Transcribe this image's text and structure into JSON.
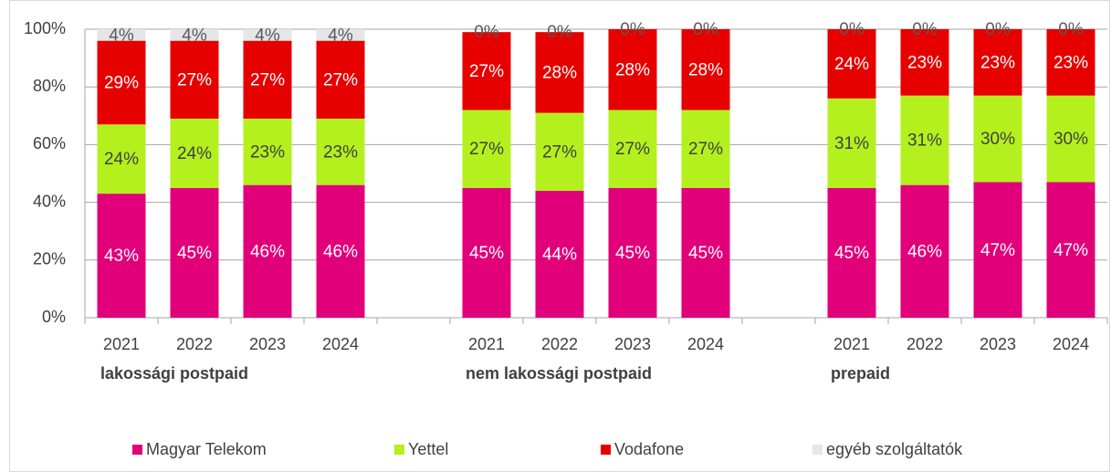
{
  "chart_data": {
    "type": "stacked_bar",
    "categories": [
      "2021",
      "2022",
      "2023",
      "2024",
      null,
      "2021",
      "2022",
      "2023",
      "2024",
      null,
      "2021",
      "2022",
      "2023",
      "2024"
    ],
    "groups": [
      "lakossági postpaid",
      null,
      null,
      null,
      null,
      "nem lakossági postpaid",
      null,
      null,
      null,
      null,
      "prepaid",
      null,
      null,
      null
    ],
    "series": [
      {
        "name": "Magyar Telekom",
        "color": "#e2007a",
        "label_color": "#ffffff",
        "values": [
          43,
          45,
          46,
          46,
          null,
          45,
          44,
          45,
          45,
          null,
          45,
          46,
          47,
          47
        ],
        "value_labels": [
          "43%",
          "45%",
          "46%",
          "46%",
          null,
          "45%",
          "44%",
          "45%",
          "45%",
          null,
          "45%",
          "46%",
          "47%",
          "47%"
        ]
      },
      {
        "name": "Yettel",
        "color": "#b4f01e",
        "label_color": "#404040",
        "values": [
          24,
          24,
          23,
          23,
          null,
          27,
          27,
          27,
          27,
          null,
          31,
          31,
          30,
          30
        ],
        "value_labels": [
          "24%",
          "24%",
          "23%",
          "23%",
          null,
          "27%",
          "27%",
          "27%",
          "27%",
          null,
          "31%",
          "31%",
          "30%",
          "30%"
        ]
      },
      {
        "name": "Vodafone",
        "color": "#e60000",
        "label_color": "#ffffff",
        "values": [
          29,
          27,
          27,
          27,
          null,
          27,
          28,
          28,
          28,
          null,
          24,
          23,
          23,
          23
        ],
        "value_labels": [
          "29%",
          "27%",
          "27%",
          "27%",
          null,
          "27%",
          "28%",
          "28%",
          "28%",
          null,
          "24%",
          "23%",
          "23%",
          "23%"
        ]
      },
      {
        "name": "egyéb szolgáltatók",
        "color": "#e6e6e6",
        "label_color": "#595959",
        "values": [
          4,
          4,
          4,
          4,
          null,
          0,
          0,
          0,
          0,
          null,
          0,
          0,
          0,
          0
        ],
        "value_labels": [
          "4%",
          "4%",
          "4%",
          "4%",
          null,
          "0%",
          "0%",
          "0%",
          "0%",
          null,
          "0%",
          "0%",
          "0%",
          "0%"
        ]
      }
    ],
    "ylim": [
      0,
      100
    ],
    "yticks": [
      {
        "value": 0,
        "label": "0%"
      },
      {
        "value": 20,
        "label": "20%"
      },
      {
        "value": 40,
        "label": "40%"
      },
      {
        "value": 60,
        "label": "60%"
      },
      {
        "value": 80,
        "label": "80%"
      },
      {
        "value": 100,
        "label": "100%"
      }
    ],
    "grid": true,
    "legend": "bottom"
  }
}
